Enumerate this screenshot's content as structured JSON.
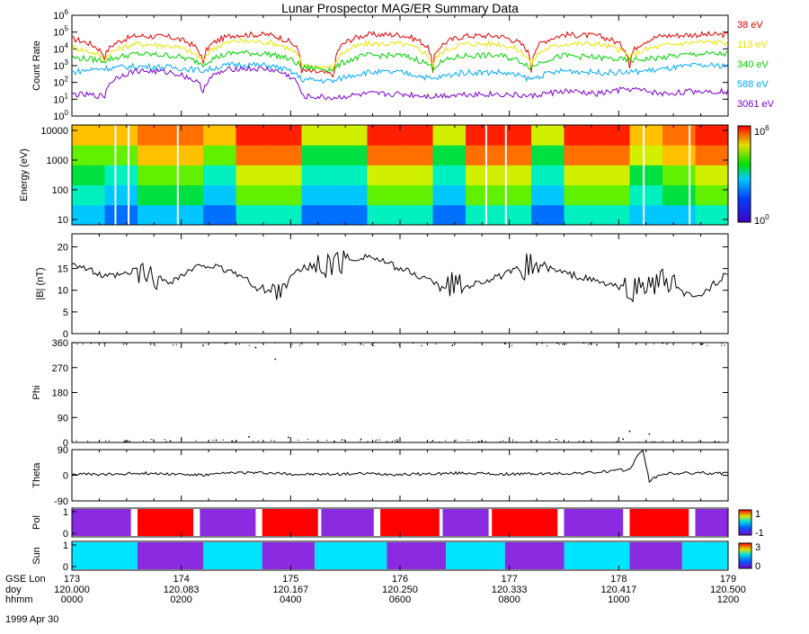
{
  "title": "Lunar Prospector MAG/ER Summary Data",
  "date_label": "1999 Apr 30",
  "colors": {
    "red": "#e60000",
    "yellow": "#e6e600",
    "green": "#00d200",
    "cyan": "#00aaff",
    "purple": "#7a00cc",
    "pol_red": "#ff0000",
    "pol_purple": "#8a2be2",
    "sun_cyan": "#00e5ff"
  },
  "chart_data": [
    {
      "id": "count_rate",
      "type": "line",
      "ylabel": "Count Rate",
      "yscale": "log",
      "ylim": [
        1,
        1000000
      ],
      "yticks": [
        {
          "exp": "0"
        },
        {
          "exp": "1"
        },
        {
          "exp": "2"
        },
        {
          "exp": "3"
        },
        {
          "exp": "4"
        },
        {
          "exp": "5"
        },
        {
          "exp": "6"
        }
      ],
      "x": [
        0,
        5,
        10,
        15,
        20,
        25,
        30,
        35,
        40,
        45,
        50,
        55,
        60,
        65,
        70,
        75,
        80,
        85,
        90,
        95,
        100
      ],
      "series": [
        {
          "name": "38 eV",
          "label": "38 eV",
          "values": [
            40000,
            3000,
            60000,
            50000,
            1000,
            70000,
            70000,
            500,
            300,
            70000,
            70000,
            300,
            60000,
            60000,
            500,
            70000,
            60000,
            700,
            60000,
            70000,
            70000
          ],
          "colorKey": "red"
        },
        {
          "name": "113 eV",
          "label": "113 eV",
          "values": [
            12000,
            2500,
            20000,
            15000,
            1500,
            30000,
            25000,
            1000,
            800,
            20000,
            20000,
            900,
            20000,
            20000,
            900,
            20000,
            20000,
            3000,
            15000,
            25000,
            25000
          ],
          "colorKey": "yellow"
        },
        {
          "name": "340 eV",
          "label": "340 eV",
          "values": [
            3000,
            2000,
            5000,
            4000,
            1200,
            6000,
            5000,
            800,
            600,
            4000,
            4000,
            700,
            4000,
            4000,
            700,
            4000,
            3000,
            2000,
            3000,
            5000,
            5000
          ],
          "colorKey": "green"
        },
        {
          "name": "588 eV",
          "label": "588 eV",
          "values": [
            400,
            700,
            900,
            800,
            500,
            1200,
            1000,
            150,
            120,
            400,
            400,
            150,
            400,
            400,
            150,
            500,
            400,
            400,
            600,
            1000,
            1000
          ],
          "colorKey": "cyan"
        },
        {
          "name": "3061 eV",
          "label": "3061 eV",
          "values": [
            20,
            15,
            500,
            400,
            30,
            700,
            600,
            15,
            12,
            20,
            20,
            15,
            20,
            20,
            15,
            30,
            20,
            40,
            20,
            30,
            30
          ],
          "colorKey": "purple"
        }
      ]
    },
    {
      "id": "energy",
      "type": "heatmap",
      "ylabel": "Energy (eV)",
      "yticks": [
        "10",
        "100",
        "1000",
        "10000"
      ],
      "colorbar": {
        "min_exp": "0",
        "max_exp": "6"
      },
      "x": [
        0,
        5,
        10,
        15,
        20,
        25,
        30,
        35,
        40,
        45,
        50,
        55,
        60,
        65,
        70,
        75,
        80,
        85,
        90,
        95,
        100
      ],
      "bands_1to10": [
        [
          3,
          2,
          3,
          3,
          2,
          4,
          4,
          2,
          2,
          4,
          4,
          2,
          4,
          4,
          2,
          4,
          4,
          3,
          3,
          4,
          4
        ],
        [
          4,
          3,
          5,
          5,
          3,
          6,
          6,
          3,
          3,
          6,
          6,
          3,
          6,
          6,
          3,
          6,
          6,
          4,
          5,
          6,
          6
        ],
        [
          5,
          4,
          6,
          6,
          4,
          7,
          7,
          4,
          4,
          7,
          7,
          4,
          7,
          7,
          4,
          7,
          7,
          5,
          6,
          7,
          7
        ],
        [
          6,
          6,
          8,
          8,
          6,
          9,
          9,
          5,
          5,
          9,
          9,
          5,
          9,
          9,
          5,
          9,
          9,
          7,
          8,
          9,
          9
        ],
        [
          8,
          8,
          9,
          9,
          8,
          10,
          10,
          7,
          7,
          10,
          10,
          7,
          10,
          10,
          7,
          10,
          10,
          8,
          9,
          10,
          10
        ]
      ]
    },
    {
      "id": "b_mag",
      "type": "line",
      "ylabel": "|B| (nT)",
      "ylim": [
        0,
        23
      ],
      "yticks": [
        "0",
        "5",
        "10",
        "15",
        "20"
      ],
      "x": [
        0,
        5,
        10,
        15,
        20,
        25,
        30,
        35,
        40,
        45,
        50,
        55,
        60,
        65,
        70,
        75,
        80,
        85,
        90,
        95,
        100
      ],
      "values": [
        16.5,
        13,
        14,
        12,
        16,
        14,
        9,
        15,
        16,
        18,
        15,
        12,
        11,
        13,
        16,
        14,
        12,
        10,
        12,
        8,
        14
      ]
    },
    {
      "id": "phi",
      "type": "scatter",
      "ylabel": "Phi",
      "ylim": [
        0,
        360
      ],
      "yticks": [
        "0",
        "90",
        "180",
        "270",
        "360"
      ],
      "points": [
        [
          5,
          355
        ],
        [
          12,
          358
        ],
        [
          20,
          350
        ],
        [
          28,
          342
        ],
        [
          31,
          300
        ],
        [
          35,
          357
        ],
        [
          44,
          355
        ],
        [
          52,
          359
        ],
        [
          58,
          350
        ],
        [
          66,
          356
        ],
        [
          74,
          358
        ],
        [
          80,
          352
        ],
        [
          86,
          355
        ],
        [
          90,
          358
        ],
        [
          96,
          354
        ],
        [
          8,
          3
        ],
        [
          15,
          5
        ],
        [
          22,
          8
        ],
        [
          27,
          20
        ],
        [
          33,
          18
        ],
        [
          40,
          4
        ],
        [
          48,
          2
        ],
        [
          55,
          6
        ],
        [
          62,
          3
        ],
        [
          70,
          5
        ],
        [
          78,
          4
        ],
        [
          84,
          12
        ],
        [
          88,
          30
        ],
        [
          85,
          40
        ],
        [
          93,
          6
        ],
        [
          98,
          3
        ]
      ]
    },
    {
      "id": "theta",
      "type": "line",
      "ylabel": "Theta",
      "ylim": [
        -90,
        90
      ],
      "yticks": [
        "-90",
        "0",
        "90"
      ],
      "x": [
        0,
        5,
        10,
        15,
        20,
        25,
        30,
        35,
        40,
        45,
        50,
        55,
        60,
        65,
        70,
        75,
        80,
        85,
        86,
        87,
        88,
        90,
        95,
        100
      ],
      "values": [
        5,
        2,
        8,
        5,
        0,
        10,
        8,
        3,
        4,
        6,
        3,
        5,
        8,
        4,
        5,
        6,
        10,
        20,
        60,
        90,
        -20,
        5,
        8,
        6
      ]
    },
    {
      "id": "pol",
      "type": "bar",
      "ylabel": "Pol",
      "yticks": [
        "1",
        "-1"
      ],
      "ymarks": [
        "0",
        "1"
      ],
      "segments": [
        {
          "start": 0,
          "end": 9,
          "state": -1
        },
        {
          "start": 10,
          "end": 18.5,
          "state": 1
        },
        {
          "start": 19.5,
          "end": 28,
          "state": -1
        },
        {
          "start": 29,
          "end": 37.5,
          "state": 1
        },
        {
          "start": 38,
          "end": 46,
          "state": -1
        },
        {
          "start": 47,
          "end": 56,
          "state": 1
        },
        {
          "start": 56.5,
          "end": 63.5,
          "state": -1
        },
        {
          "start": 64,
          "end": 74,
          "state": 1
        },
        {
          "start": 75,
          "end": 84,
          "state": -1
        },
        {
          "start": 85,
          "end": 94,
          "state": 1
        },
        {
          "start": 95,
          "end": 100,
          "state": -1
        }
      ]
    },
    {
      "id": "sun",
      "type": "bar",
      "ylabel": "Sun",
      "yticks": [
        "3",
        "0"
      ],
      "ymarks": [
        "0",
        "1"
      ],
      "segments": [
        {
          "start": 0,
          "end": 10,
          "state": "sun"
        },
        {
          "start": 10,
          "end": 20,
          "state": "shadow"
        },
        {
          "start": 20,
          "end": 29,
          "state": "sun"
        },
        {
          "start": 29,
          "end": 37,
          "state": "shadow"
        },
        {
          "start": 37,
          "end": 48,
          "state": "sun"
        },
        {
          "start": 48,
          "end": 57,
          "state": "shadow"
        },
        {
          "start": 57,
          "end": 66,
          "state": "sun"
        },
        {
          "start": 66,
          "end": 75,
          "state": "shadow"
        },
        {
          "start": 75,
          "end": 85,
          "state": "sun"
        },
        {
          "start": 85,
          "end": 93,
          "state": "shadow"
        },
        {
          "start": 93,
          "end": 100,
          "state": "sun"
        }
      ]
    }
  ],
  "x_axis": {
    "row_labels": [
      "GSE Lon",
      "doy",
      "hhmm"
    ],
    "ticks": [
      {
        "lon": "173",
        "doy": "120.000",
        "hhmm": "0000"
      },
      {
        "lon": "174",
        "doy": "120.083",
        "hhmm": "0200"
      },
      {
        "lon": "175",
        "doy": "120.167",
        "hhmm": "0400"
      },
      {
        "lon": "176",
        "doy": "120.250",
        "hhmm": "0600"
      },
      {
        "lon": "177",
        "doy": "120.333",
        "hhmm": "0800"
      },
      {
        "lon": "178",
        "doy": "120.417",
        "hhmm": "1000"
      },
      {
        "lon": "179",
        "doy": "120.500",
        "hhmm": "1200"
      }
    ]
  }
}
